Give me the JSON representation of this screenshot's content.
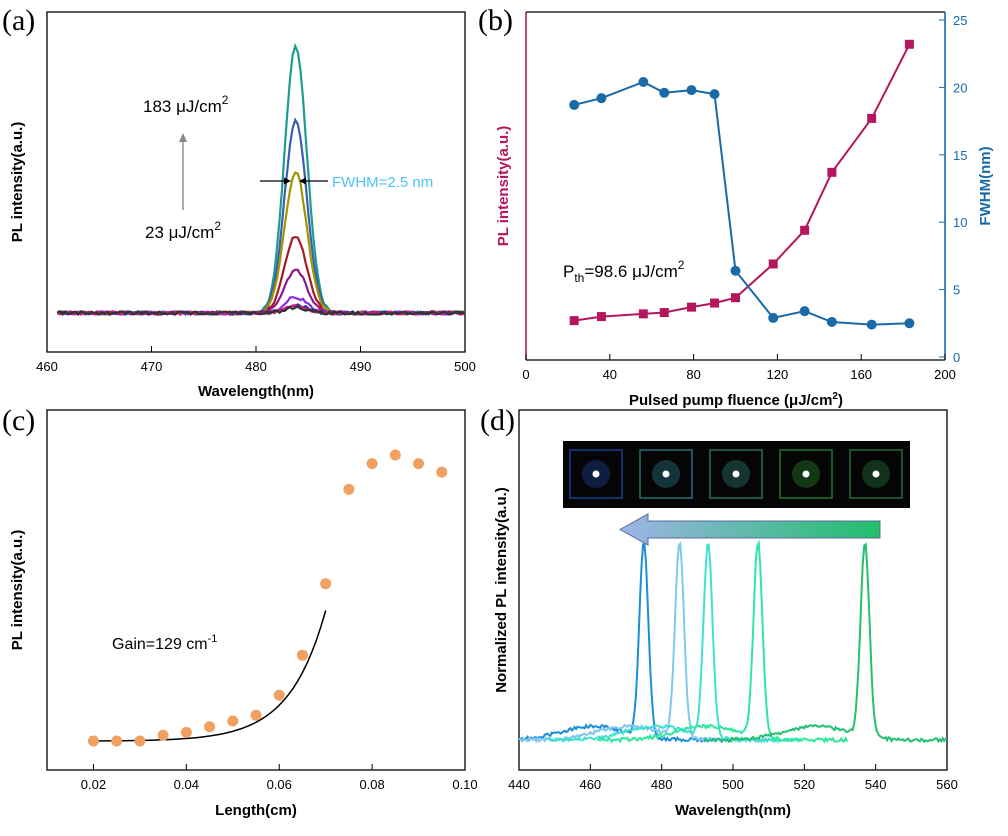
{
  "chart_data": [
    {
      "panel": "(a)",
      "type": "line",
      "xlabel": "Wavelength(nm)",
      "ylabel": "PL intensity(a.u.)",
      "xlim": [
        460,
        500
      ],
      "xticks": [
        "460",
        "470",
        "480",
        "490",
        "500"
      ],
      "peak_center": 483.8,
      "baseline": 0.04,
      "series": [
        {
          "color": "#1e9c8e",
          "peak": 1.0
        },
        {
          "color": "#3b5fb0",
          "peak": 0.72
        },
        {
          "color": "#a39400",
          "peak": 0.53
        },
        {
          "color": "#a31a2a",
          "peak": 0.29
        },
        {
          "color": "#8b1a8b",
          "peak": 0.16
        },
        {
          "color": "#8a2be2",
          "peak": 0.06
        },
        {
          "color": "#1c3d8c",
          "peak": 0.03
        },
        {
          "color": "#d11a8a",
          "peak": 0.025
        },
        {
          "color": "#333333",
          "peak": 0.02
        }
      ],
      "annotations": {
        "top_fluence": "183 μJ/cm",
        "top_exp": "2",
        "bottom_fluence": "23 μJ/cm",
        "bottom_exp": "2",
        "fwhm": "FWHM=2.5 nm"
      },
      "colors": {
        "fwhm_text": "#4fc3f7"
      }
    },
    {
      "panel": "(b)",
      "type": "line",
      "xlabel": "Pulsed pump fluence (μJ/cm",
      "xlabel_exp": "2",
      "xlabel_end": ")",
      "ylabel_left": "PL intensity(a.u.)",
      "ylabel_right": "FWHM(nm)",
      "xlim": [
        0,
        200
      ],
      "xticks": [
        "0",
        "40",
        "80",
        "120",
        "160",
        "200"
      ],
      "y2lim": [
        0,
        25
      ],
      "y2ticks": [
        "0",
        "5",
        "10",
        "15",
        "20",
        "25"
      ],
      "series": [
        {
          "axis": "left",
          "marker": "square",
          "color": "#b5175e",
          "x": [
            23,
            36,
            56,
            66,
            79,
            90,
            100,
            118,
            133,
            146,
            165,
            183
          ],
          "y": [
            2.7,
            3.0,
            3.2,
            3.3,
            3.7,
            4.0,
            4.4,
            6.9,
            9.4,
            13.7,
            17.7,
            23.2
          ]
        },
        {
          "axis": "right",
          "marker": "circle",
          "color": "#1a6aa8",
          "x": [
            23,
            36,
            56,
            66,
            79,
            90,
            100,
            118,
            133,
            146,
            165,
            183
          ],
          "y": [
            18.7,
            19.2,
            20.4,
            19.6,
            19.8,
            19.5,
            6.4,
            2.9,
            3.4,
            2.6,
            2.4,
            2.5
          ]
        }
      ],
      "annotation": {
        "prefix": "P",
        "sub": "th",
        "rest": "=98.6 μJ/cm",
        "exp": "2"
      },
      "colors": {
        "left_axis": "#b5175e",
        "right_axis": "#1a6aa8"
      }
    },
    {
      "panel": "(c)",
      "type": "scatter",
      "xlabel": "Length(cm)",
      "ylabel": "PL intensity(a.u.)",
      "xlim": [
        0.01,
        0.1
      ],
      "xticks": [
        "0.02",
        "0.04",
        "0.06",
        "0.08",
        "0.10"
      ],
      "x": [
        0.02,
        0.025,
        0.03,
        0.035,
        0.04,
        0.045,
        0.05,
        0.055,
        0.06,
        0.065,
        0.07,
        0.075,
        0.08,
        0.085,
        0.09,
        0.095
      ],
      "y": [
        0.0,
        0.0,
        0.0,
        0.02,
        0.03,
        0.05,
        0.07,
        0.09,
        0.16,
        0.3,
        0.55,
        0.88,
        0.97,
        1.0,
        0.97,
        0.94
      ],
      "fit_label": "Gain=129 cm",
      "fit_exp": "-1",
      "colors": {
        "points": "#f0a060"
      }
    },
    {
      "panel": "(d)",
      "type": "line",
      "xlabel": "Wavelength(nm)",
      "ylabel": "Normalized PL intensity(a.u.)",
      "xlim": [
        440,
        560
      ],
      "xticks": [
        "440",
        "460",
        "480",
        "500",
        "520",
        "540",
        "560"
      ],
      "series": [
        {
          "color": "#1a8fd8",
          "peak_nm": 475
        },
        {
          "color": "#7ec8f0",
          "peak_nm": 485
        },
        {
          "color": "#40e0d0",
          "peak_nm": 493
        },
        {
          "color": "#2fe8a0",
          "peak_nm": 507
        },
        {
          "color": "#22c070",
          "peak_nm": 537
        }
      ],
      "inset_photo_colors": [
        "#2a6bff",
        "#44c4e0",
        "#48c8b8",
        "#3ad24c",
        "#36c060"
      ],
      "arrow_colors": [
        "#9eb4e8",
        "#1fbf6a"
      ]
    }
  ]
}
